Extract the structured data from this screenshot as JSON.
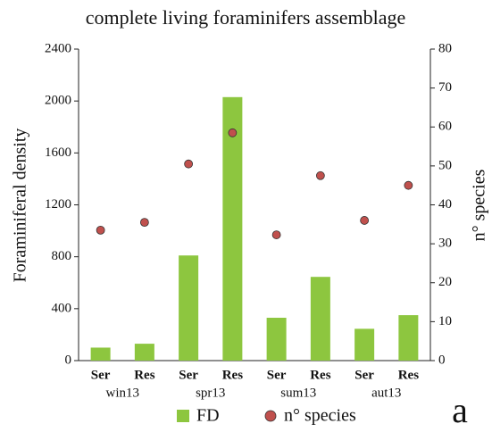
{
  "chart_data": {
    "type": "bar",
    "title": "complete living foraminifers assemblage",
    "panel_label": "a",
    "ylabel": "Foraminiferal density",
    "y2label": "n° species",
    "categories": [
      "Ser",
      "Res",
      "Ser",
      "Res",
      "Ser",
      "Res",
      "Ser",
      "Res"
    ],
    "groups": [
      "win13",
      "spr13",
      "sum13",
      "aut13"
    ],
    "series": [
      {
        "name": "FD",
        "type": "bar",
        "color": "#8dc63f",
        "values": [
          100,
          130,
          810,
          2030,
          330,
          645,
          245,
          350
        ]
      },
      {
        "name": "n° species",
        "type": "scatter",
        "axis": "y2",
        "color": "#c0504d",
        "values": [
          33.5,
          35.5,
          50.5,
          58.5,
          32.3,
          47.5,
          36,
          45
        ]
      }
    ],
    "ylim": [
      0,
      2400
    ],
    "yticks": [
      0,
      400,
      800,
      1200,
      1600,
      2000,
      2400
    ],
    "y2lim": [
      0,
      80
    ],
    "y2ticks": [
      0,
      10,
      20,
      30,
      40,
      50,
      60,
      70,
      80
    ],
    "grid": false
  }
}
